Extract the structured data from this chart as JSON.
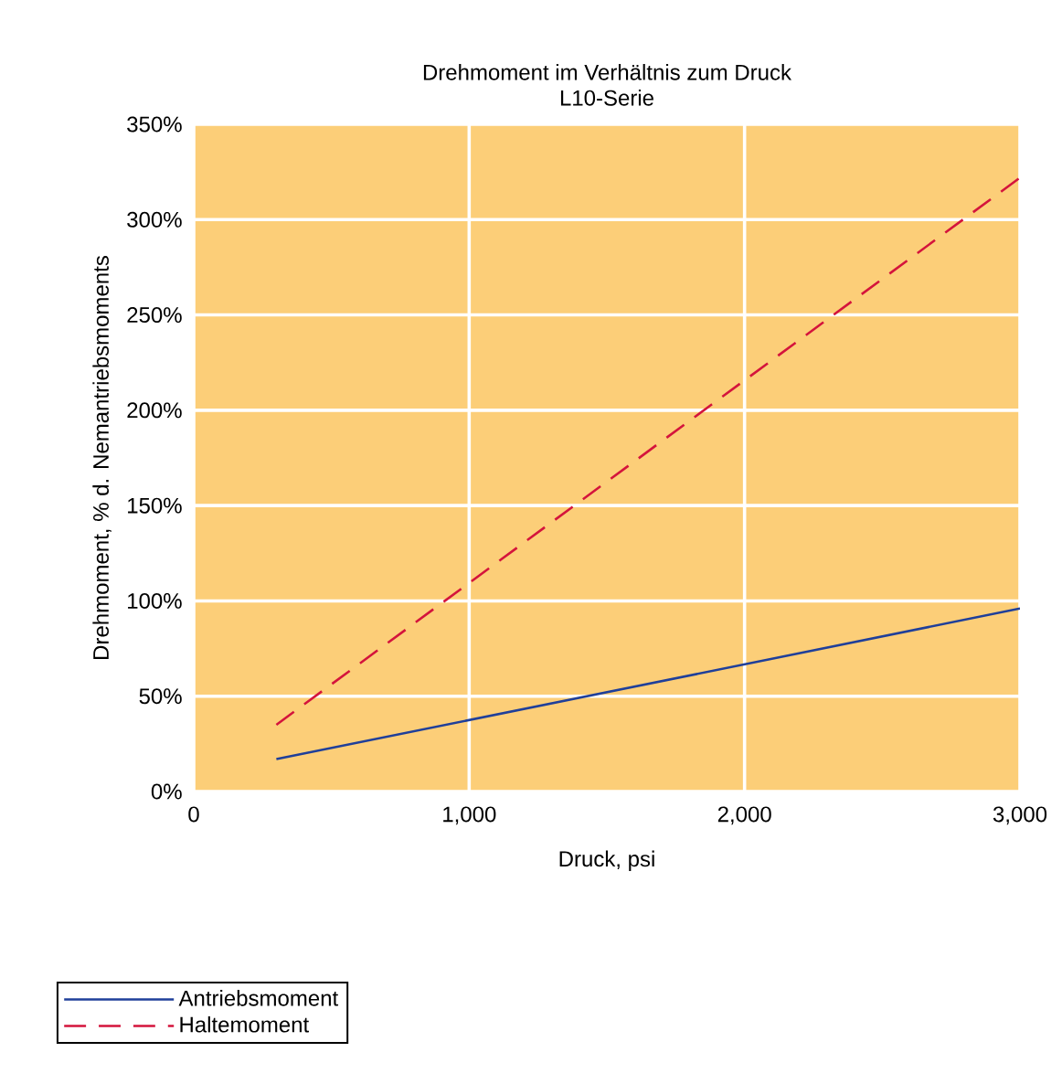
{
  "chart_data": {
    "type": "line",
    "title": "Drehmoment im Verhältnis zum Druck",
    "subtitle": "L10-Serie",
    "xlabel": "Druck, psi",
    "ylabel": "Drehmoment, % d. Nemantriebsmoments",
    "xlim": [
      0,
      3000
    ],
    "ylim": [
      0,
      350
    ],
    "xticks": [
      0,
      {
        "value": 1000,
        "label": "1,000"
      },
      {
        "value": 2000,
        "label": "2,000"
      },
      {
        "value": 3000,
        "label": "3,000"
      }
    ],
    "yticks": [
      {
        "value": 0,
        "label": "0%"
      },
      {
        "value": 50,
        "label": "50%"
      },
      {
        "value": 100,
        "label": "100%"
      },
      {
        "value": 150,
        "label": "150%"
      },
      {
        "value": 200,
        "label": "200%"
      },
      {
        "value": 250,
        "label": "250%"
      },
      {
        "value": 300,
        "label": "300%"
      },
      {
        "value": 350,
        "label": "350%"
      }
    ],
    "grid": true,
    "legend": "bottom left",
    "x": [
      300,
      3000
    ],
    "series": [
      {
        "name": "Antriebsmoment",
        "color": "#1f3f9a",
        "line_style": "solid",
        "values": [
          17,
          96
        ]
      },
      {
        "name": "Haltemoment",
        "color": "#d4143c",
        "line_style": "dashed",
        "values": [
          35,
          322
        ]
      }
    ]
  }
}
